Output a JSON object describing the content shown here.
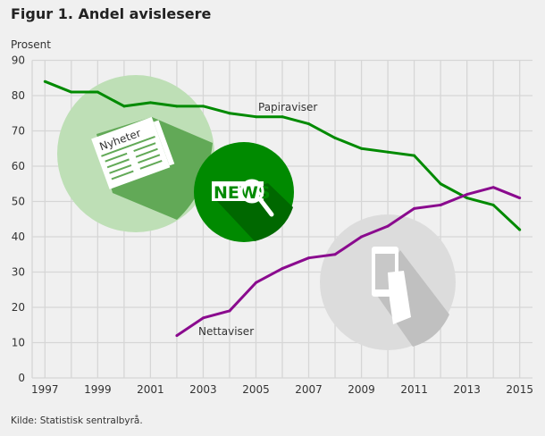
{
  "chart_data": {
    "type": "line",
    "title": "Figur 1. Andel avislesere",
    "ylabel": "Prosent",
    "xlabel": "",
    "source": "Kilde: Statistisk sentralbyrå.",
    "ylim": [
      0,
      90
    ],
    "xlim": [
      1997,
      2015
    ],
    "grid": true,
    "yticks": [
      0,
      10,
      20,
      30,
      40,
      50,
      60,
      70,
      80,
      90
    ],
    "xticks": [
      1997,
      1999,
      2001,
      2003,
      2005,
      2007,
      2009,
      2011,
      2013,
      2015
    ],
    "series": [
      {
        "name": "Papiraviser",
        "color": "#008a00",
        "x": [
          1997,
          1998,
          1999,
          2000,
          2001,
          2002,
          2003,
          2004,
          2005,
          2006,
          2007,
          2008,
          2009,
          2010,
          2011,
          2012,
          2013,
          2014,
          2015
        ],
        "values": [
          84,
          81,
          81,
          77,
          78,
          77,
          77,
          75,
          74,
          74,
          72,
          68,
          65,
          64,
          63,
          55,
          51,
          49,
          42
        ]
      },
      {
        "name": "Nettaviser",
        "color": "#8a0a8e",
        "x": [
          2002,
          2003,
          2004,
          2005,
          2006,
          2007,
          2008,
          2009,
          2010,
          2011,
          2012,
          2013,
          2014,
          2015
        ],
        "values": [
          12,
          17,
          19,
          27,
          31,
          34,
          35,
          40,
          43,
          48,
          49,
          52,
          54,
          51
        ]
      }
    ],
    "illustrations": {
      "newspaper_label": "Nyheter",
      "news_label": "NEWS"
    }
  }
}
